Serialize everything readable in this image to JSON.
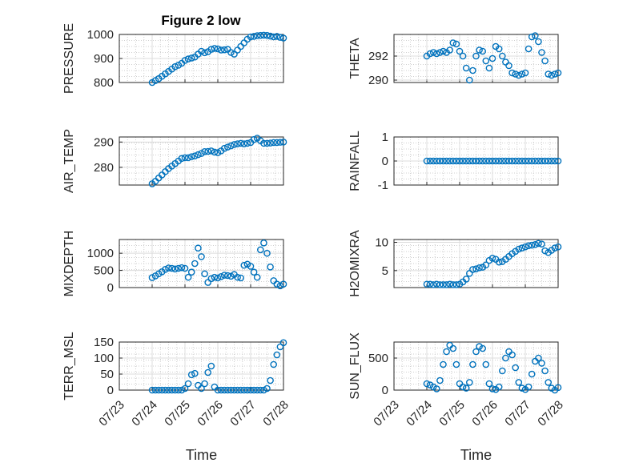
{
  "figure": {
    "title": "Figure 2 low"
  },
  "chart_data": [
    {
      "type": "scatter",
      "ylabel": "PRESSURE",
      "xlabel": "",
      "xlim": [
        0,
        5
      ],
      "ylim": [
        800,
        1000
      ],
      "yticks": [
        800,
        900,
        1000
      ],
      "ytick_labels": [
        "800",
        "900",
        "1000"
      ],
      "x": [
        1.0,
        1.1,
        1.2,
        1.3,
        1.4,
        1.5,
        1.6,
        1.7,
        1.8,
        1.9,
        2.0,
        2.1,
        2.2,
        2.3,
        2.4,
        2.5,
        2.6,
        2.7,
        2.8,
        2.9,
        3.0,
        3.1,
        3.2,
        3.3,
        3.4,
        3.5,
        3.6,
        3.7,
        3.8,
        3.9,
        4.0,
        4.1,
        4.2,
        4.3,
        4.4,
        4.5,
        4.6,
        4.7,
        4.8,
        4.9,
        5.0
      ],
      "y": [
        800,
        808,
        816,
        826,
        836,
        846,
        856,
        866,
        872,
        880,
        892,
        898,
        902,
        906,
        918,
        930,
        924,
        928,
        938,
        942,
        940,
        935,
        936,
        938,
        925,
        918,
        935,
        950,
        965,
        980,
        990,
        992,
        995,
        996,
        997,
        996,
        993,
        990,
        992,
        988,
        985
      ]
    },
    {
      "type": "scatter",
      "ylabel": "THETA",
      "xlabel": "",
      "xlim": [
        0,
        5
      ],
      "ylim": [
        289.8,
        293.8
      ],
      "yticks": [
        290,
        292
      ],
      "ytick_labels": [
        "290",
        "292"
      ],
      "x": [
        1.0,
        1.1,
        1.2,
        1.3,
        1.4,
        1.5,
        1.6,
        1.7,
        1.8,
        1.9,
        2.0,
        2.1,
        2.2,
        2.3,
        2.4,
        2.5,
        2.6,
        2.7,
        2.8,
        2.9,
        3.0,
        3.1,
        3.2,
        3.3,
        3.4,
        3.5,
        3.6,
        3.7,
        3.8,
        3.9,
        4.0,
        4.1,
        4.2,
        4.3,
        4.4,
        4.5,
        4.6,
        4.7,
        4.8,
        4.9,
        5.0
      ],
      "y": [
        292.0,
        292.2,
        292.3,
        292.2,
        292.3,
        292.4,
        292.3,
        292.5,
        293.1,
        293.0,
        292.4,
        292.0,
        291.0,
        290.0,
        290.8,
        292.0,
        292.5,
        292.4,
        291.6,
        291.0,
        291.8,
        292.8,
        292.6,
        292.0,
        291.5,
        291.2,
        290.6,
        290.5,
        290.4,
        290.5,
        290.6,
        292.6,
        293.6,
        293.7,
        293.2,
        292.3,
        291.6,
        290.5,
        290.4,
        290.5,
        290.6
      ]
    },
    {
      "type": "scatter",
      "ylabel": "AIR_TEMP",
      "xlabel": "",
      "xlim": [
        0,
        5
      ],
      "ylim": [
        273,
        292
      ],
      "yticks": [
        280,
        290
      ],
      "ytick_labels": [
        "280",
        "290"
      ],
      "x": [
        1.0,
        1.1,
        1.2,
        1.3,
        1.4,
        1.5,
        1.6,
        1.7,
        1.8,
        1.9,
        2.0,
        2.1,
        2.2,
        2.3,
        2.4,
        2.5,
        2.6,
        2.7,
        2.8,
        2.9,
        3.0,
        3.1,
        3.2,
        3.3,
        3.4,
        3.5,
        3.6,
        3.7,
        3.8,
        3.9,
        4.0,
        4.1,
        4.2,
        4.3,
        4.4,
        4.5,
        4.6,
        4.7,
        4.8,
        4.9,
        5.0
      ],
      "y": [
        273.5,
        274.5,
        275.8,
        277.0,
        278.3,
        279.5,
        280.5,
        281.5,
        282.5,
        283.5,
        283.8,
        283.8,
        284.2,
        284.5,
        285.0,
        285.5,
        286.2,
        286.3,
        286.5,
        286.0,
        285.8,
        286.5,
        287.5,
        288.0,
        288.5,
        289.0,
        289.3,
        289.5,
        289.3,
        289.5,
        289.8,
        291.0,
        291.5,
        290.5,
        289.5,
        289.5,
        289.6,
        289.8,
        289.8,
        289.9,
        290.0
      ]
    },
    {
      "type": "scatter",
      "ylabel": "RAINFALL",
      "xlabel": "",
      "xlim": [
        0,
        5
      ],
      "ylim": [
        -1,
        1
      ],
      "yticks": [
        -1,
        0,
        1
      ],
      "ytick_labels": [
        "-1",
        "0",
        "1"
      ],
      "x": [
        1.0,
        1.1,
        1.2,
        1.3,
        1.4,
        1.5,
        1.6,
        1.7,
        1.8,
        1.9,
        2.0,
        2.1,
        2.2,
        2.3,
        2.4,
        2.5,
        2.6,
        2.7,
        2.8,
        2.9,
        3.0,
        3.1,
        3.2,
        3.3,
        3.4,
        3.5,
        3.6,
        3.7,
        3.8,
        3.9,
        4.0,
        4.1,
        4.2,
        4.3,
        4.4,
        4.5,
        4.6,
        4.7,
        4.8,
        4.9,
        5.0
      ],
      "y": [
        0,
        0,
        0,
        0,
        0,
        0,
        0,
        0,
        0,
        0,
        0,
        0,
        0,
        0,
        0,
        0,
        0,
        0,
        0,
        0,
        0,
        0,
        0,
        0,
        0,
        0,
        0,
        0,
        0,
        0,
        0,
        0,
        0,
        0,
        0,
        0,
        0,
        0,
        0,
        0,
        0
      ]
    },
    {
      "type": "scatter",
      "ylabel": "MIXDEPTH",
      "xlabel": "",
      "xlim": [
        0,
        5
      ],
      "ylim": [
        0,
        1400
      ],
      "yticks": [
        0,
        500,
        1000
      ],
      "ytick_labels": [
        "0",
        "500",
        "1000"
      ],
      "x": [
        1.0,
        1.1,
        1.2,
        1.3,
        1.4,
        1.5,
        1.6,
        1.7,
        1.8,
        1.9,
        2.0,
        2.1,
        2.2,
        2.3,
        2.4,
        2.5,
        2.6,
        2.7,
        2.8,
        2.9,
        3.0,
        3.1,
        3.2,
        3.3,
        3.4,
        3.5,
        3.6,
        3.7,
        3.8,
        3.9,
        4.0,
        4.1,
        4.2,
        4.3,
        4.4,
        4.5,
        4.6,
        4.7,
        4.8,
        4.9,
        5.0
      ],
      "y": [
        290,
        340,
        400,
        460,
        530,
        570,
        560,
        540,
        560,
        580,
        560,
        300,
        450,
        700,
        1150,
        900,
        400,
        150,
        260,
        300,
        280,
        320,
        360,
        350,
        330,
        380,
        300,
        280,
        650,
        680,
        620,
        450,
        300,
        1100,
        1300,
        1000,
        600,
        200,
        100,
        50,
        100
      ]
    },
    {
      "type": "scatter",
      "ylabel": "H2OMIXRA",
      "xlabel": "",
      "xlim": [
        0,
        5
      ],
      "ylim": [
        2,
        10.5
      ],
      "yticks": [
        5,
        10
      ],
      "ytick_labels": [
        "5",
        "10"
      ],
      "x": [
        1.0,
        1.1,
        1.2,
        1.3,
        1.4,
        1.5,
        1.6,
        1.7,
        1.8,
        1.9,
        2.0,
        2.1,
        2.2,
        2.3,
        2.4,
        2.5,
        2.6,
        2.7,
        2.8,
        2.9,
        3.0,
        3.1,
        3.2,
        3.3,
        3.4,
        3.5,
        3.6,
        3.7,
        3.8,
        3.9,
        4.0,
        4.1,
        4.2,
        4.3,
        4.4,
        4.5,
        4.6,
        4.7,
        4.8,
        4.9,
        5.0
      ],
      "y": [
        2.6,
        2.6,
        2.5,
        2.6,
        2.5,
        2.5,
        2.5,
        2.6,
        2.5,
        2.5,
        2.6,
        3.0,
        3.5,
        4.5,
        5.2,
        5.3,
        5.5,
        5.6,
        6.0,
        6.8,
        7.2,
        7.0,
        6.5,
        6.6,
        7.0,
        7.5,
        8.0,
        8.4,
        8.8,
        9.0,
        9.2,
        9.4,
        9.5,
        9.6,
        9.8,
        9.7,
        8.5,
        8.2,
        8.6,
        9.0,
        9.2
      ]
    },
    {
      "type": "scatter",
      "ylabel": "TERR_MSL",
      "xlabel": "Time",
      "xlim": [
        0,
        5
      ],
      "ylim": [
        0,
        150
      ],
      "yticks": [
        0,
        50,
        100,
        150
      ],
      "ytick_labels": [
        "0",
        "50",
        "100",
        "150"
      ],
      "xticks": [
        0,
        1,
        2,
        3,
        4,
        5
      ],
      "xtick_labels": [
        "07/23",
        "07/24",
        "07/25",
        "07/26",
        "07/27",
        "07/28"
      ],
      "x": [
        1.0,
        1.1,
        1.2,
        1.3,
        1.4,
        1.5,
        1.6,
        1.7,
        1.8,
        1.9,
        2.0,
        2.1,
        2.2,
        2.3,
        2.4,
        2.5,
        2.6,
        2.7,
        2.8,
        2.9,
        3.0,
        3.1,
        3.2,
        3.3,
        3.4,
        3.5,
        3.6,
        3.7,
        3.8,
        3.9,
        4.0,
        4.1,
        4.2,
        4.3,
        4.4,
        4.5,
        4.6,
        4.7,
        4.8,
        4.9,
        5.0
      ],
      "y": [
        0,
        0,
        0,
        0,
        0,
        0,
        0,
        0,
        0,
        0,
        5,
        20,
        48,
        52,
        15,
        5,
        20,
        55,
        75,
        10,
        0,
        0,
        0,
        0,
        0,
        0,
        0,
        0,
        0,
        0,
        0,
        0,
        0,
        0,
        0,
        5,
        30,
        80,
        110,
        135,
        148
      ]
    },
    {
      "type": "scatter",
      "ylabel": "SUN_FLUX",
      "xlabel": "Time",
      "xlim": [
        0,
        5
      ],
      "ylim": [
        0,
        750
      ],
      "yticks": [
        0,
        500
      ],
      "ytick_labels": [
        "0",
        "500"
      ],
      "xticks": [
        0,
        1,
        2,
        3,
        4,
        5
      ],
      "xtick_labels": [
        "07/23",
        "07/24",
        "07/25",
        "07/26",
        "07/27",
        "07/28"
      ],
      "x": [
        1.0,
        1.1,
        1.2,
        1.3,
        1.4,
        1.5,
        1.6,
        1.7,
        1.8,
        1.9,
        2.0,
        2.1,
        2.2,
        2.3,
        2.4,
        2.5,
        2.6,
        2.7,
        2.8,
        2.9,
        3.0,
        3.1,
        3.2,
        3.3,
        3.4,
        3.5,
        3.6,
        3.7,
        3.8,
        3.9,
        4.0,
        4.1,
        4.2,
        4.3,
        4.4,
        4.5,
        4.6,
        4.7,
        4.8,
        4.9,
        5.0
      ],
      "y": [
        100,
        80,
        50,
        20,
        150,
        400,
        600,
        700,
        650,
        400,
        100,
        50,
        30,
        120,
        400,
        600,
        680,
        650,
        400,
        100,
        20,
        10,
        50,
        300,
        500,
        600,
        550,
        350,
        120,
        30,
        10,
        50,
        250,
        450,
        500,
        420,
        300,
        120,
        30,
        0,
        40
      ]
    }
  ]
}
